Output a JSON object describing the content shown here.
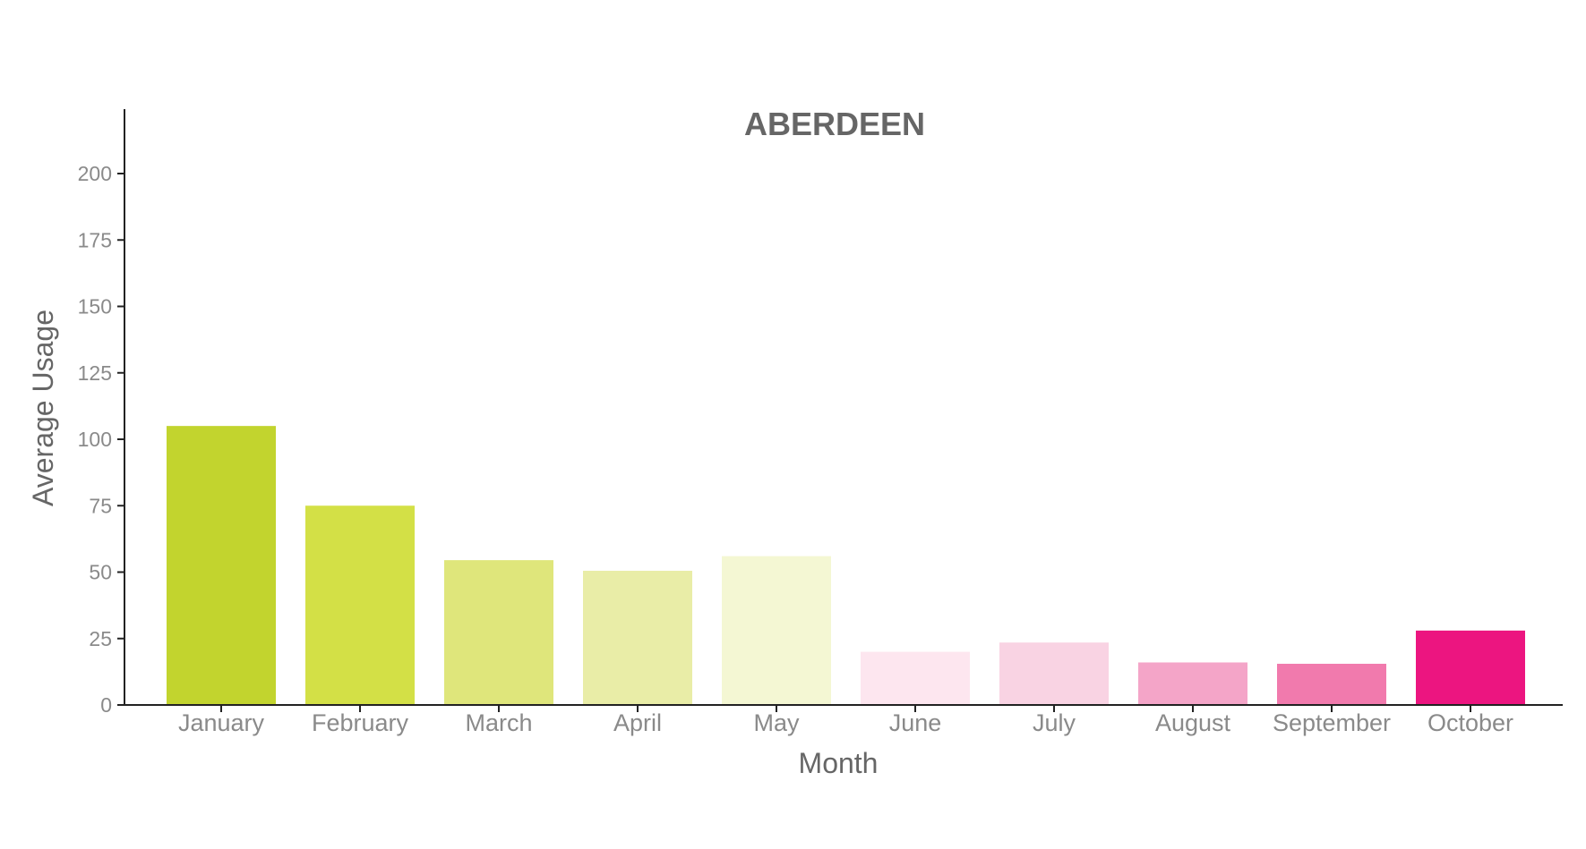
{
  "chart_data": {
    "type": "bar",
    "title": "ABERDEEN",
    "xlabel": "Month",
    "ylabel": "Average Usage",
    "categories": [
      "January",
      "February",
      "March",
      "April",
      "May",
      "June",
      "July",
      "August",
      "September",
      "October"
    ],
    "values": [
      105,
      75,
      54.5,
      50.5,
      56,
      20,
      23.5,
      16,
      15.5,
      28
    ],
    "colors": [
      "#c2d42e",
      "#d3e046",
      "#dfe67b",
      "#e9eda7",
      "#f4f7d3",
      "#fde6ef",
      "#f9d3e3",
      "#f4a5c8",
      "#f17aad",
      "#ec1580"
    ],
    "ylim": [
      0,
      200
    ],
    "yticks": [
      0,
      25,
      50,
      75,
      100,
      125,
      150,
      175,
      200
    ],
    "grid": false,
    "legend": "none"
  }
}
